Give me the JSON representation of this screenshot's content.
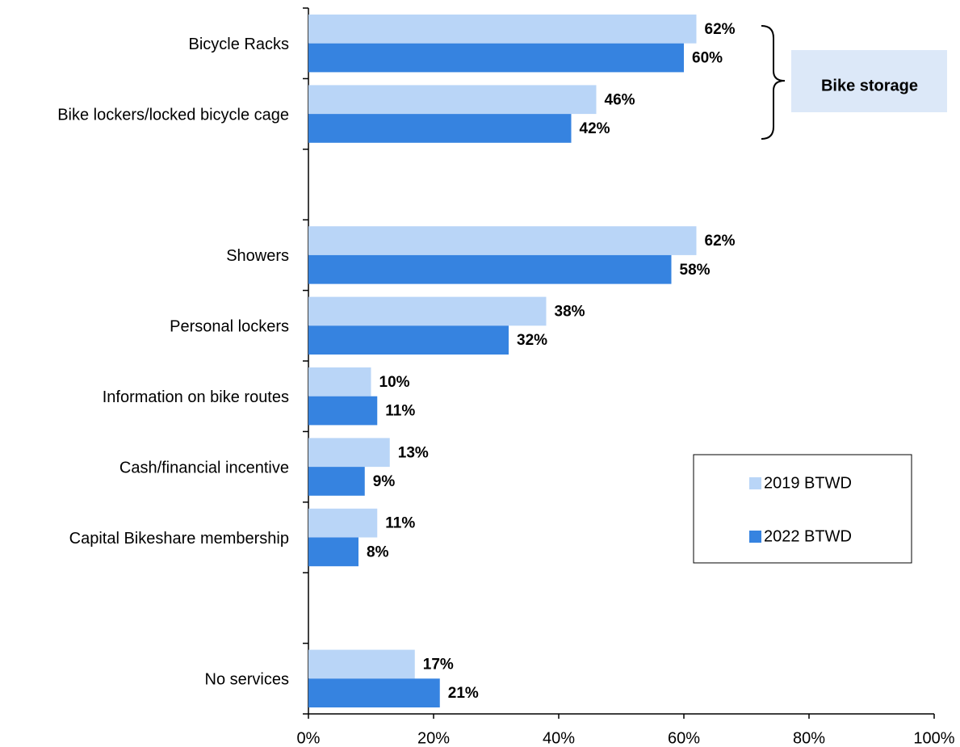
{
  "chart_data": {
    "type": "hbar",
    "categories": [
      "Bicycle Racks",
      "Bike lockers/locked bicycle cage",
      null,
      "Showers",
      "Personal lockers",
      "Information on bike routes",
      "Cash/financial incentive",
      "Capital Bikeshare membership",
      null,
      "No services"
    ],
    "series": [
      {
        "name": "2019 BTWD",
        "color": "#b9d5f7",
        "values": [
          62,
          46,
          null,
          62,
          38,
          10,
          13,
          11,
          null,
          17
        ],
        "value_labels": [
          "62%",
          "46%",
          null,
          "62%",
          "38%",
          "10%",
          "13%",
          "11%",
          null,
          "17%"
        ]
      },
      {
        "name": "2022 BTWD",
        "color": "#3683e0",
        "values": [
          60,
          42,
          null,
          58,
          32,
          11,
          9,
          8,
          null,
          21
        ],
        "value_labels": [
          "60%",
          "42%",
          null,
          "58%",
          "32%",
          "11%",
          "9%",
          "8%",
          null,
          "21%"
        ]
      }
    ],
    "xlim": [
      0,
      100
    ],
    "xticks": [
      {
        "value": 0,
        "label": "0%"
      },
      {
        "value": 20,
        "label": "20%"
      },
      {
        "value": 40,
        "label": "40%"
      },
      {
        "value": 60,
        "label": "60%"
      },
      {
        "value": 80,
        "label": "80%"
      },
      {
        "value": 100,
        "label": "100%"
      }
    ],
    "annotation": "Bike storage",
    "legend": "right",
    "grid": false
  }
}
